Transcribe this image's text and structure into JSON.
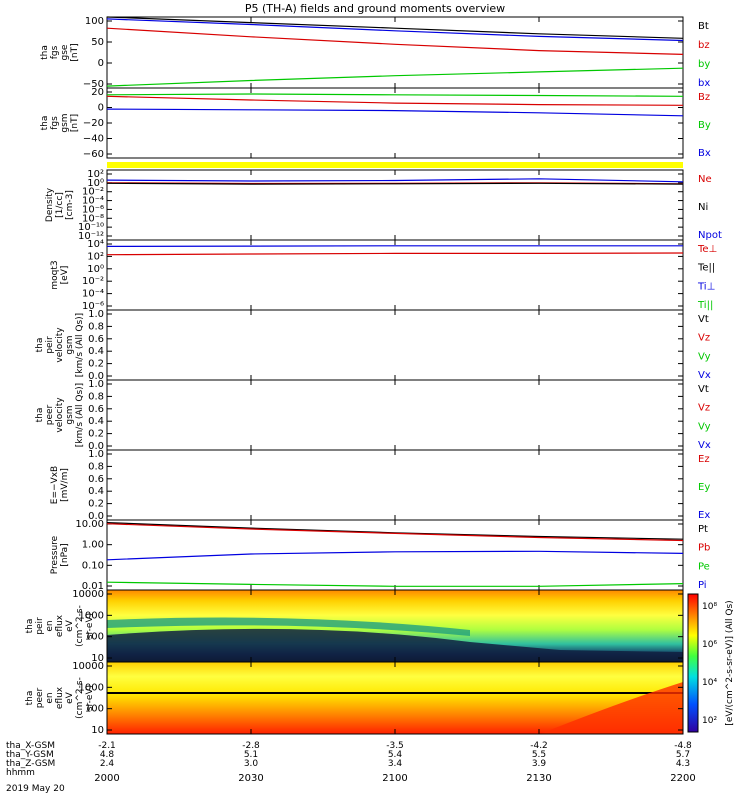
{
  "title": "P5 (TH-A) fields and ground moments overview",
  "colors": {
    "black": "#000000",
    "red": "#d80000",
    "green": "#00c800",
    "blue": "#0000e0",
    "yellow": "#ffff00"
  },
  "x_axis": {
    "ticks": [
      "2000",
      "2030",
      "2100",
      "2130",
      "2200"
    ],
    "date_label": "2019 May 20",
    "rows": [
      {
        "label": "tha_X-GSM",
        "values": [
          "-2.1",
          "-2.8",
          "-3.5",
          "-4.2",
          "-4.8"
        ]
      },
      {
        "label": "tha_Y-GSM",
        "values": [
          "4.8",
          "5.1",
          "5.4",
          "5.5",
          "5.7"
        ]
      },
      {
        "label": "tha_Z-GSM",
        "values": [
          "2.4",
          "3.0",
          "3.4",
          "3.9",
          "4.3"
        ]
      },
      {
        "label": "hhmm",
        "values": [
          "",
          "",
          "",
          "",
          ""
        ]
      }
    ]
  },
  "panels": [
    {
      "id": "fgs-gse",
      "ylabel": [
        "tha",
        "fgs",
        "gse",
        "[nT]"
      ],
      "ticks": [
        "100",
        "50",
        "0",
        "−50"
      ],
      "legend": [
        {
          "text": "Bt",
          "color": "black"
        },
        {
          "text": "bz",
          "color": "red"
        },
        {
          "text": "by",
          "color": "green"
        },
        {
          "text": "bx",
          "color": "blue"
        }
      ]
    },
    {
      "id": "fgs-gsm",
      "ylabel": [
        "tha",
        "fgs",
        "gsm",
        "[nT]"
      ],
      "ticks": [
        "20",
        "0",
        "−20",
        "−40",
        "−60"
      ],
      "legend": [
        {
          "text": "Bz",
          "color": "red"
        },
        {
          "text": "By",
          "color": "green"
        },
        {
          "text": "Bx",
          "color": "blue"
        }
      ]
    },
    {
      "id": "flag",
      "ylabel": [],
      "ticks": [],
      "legend": []
    },
    {
      "id": "density",
      "ylabel": [
        "Density",
        "[1/cc]",
        "[cm-3]"
      ],
      "ticks": [
        "10²",
        "10⁰",
        "10⁻²",
        "10⁻⁴",
        "10⁻⁶",
        "10⁻⁸",
        "10⁻¹⁰",
        "10⁻¹²"
      ],
      "legend": [
        {
          "text": "Ne",
          "color": "red"
        },
        {
          "text": "Ni",
          "color": "black"
        },
        {
          "text": "Npot",
          "color": "blue"
        }
      ]
    },
    {
      "id": "temp",
      "ylabel": [
        "moqt3",
        "[eV]"
      ],
      "ticks": [
        "10⁴",
        "10²",
        "10⁰",
        "10⁻²",
        "10⁻⁴",
        "10⁻⁶"
      ],
      "legend": [
        {
          "text": "Te⊥",
          "color": "red"
        },
        {
          "text": "Te||",
          "color": "black"
        },
        {
          "text": "Ti⊥",
          "color": "blue"
        },
        {
          "text": "Ti||",
          "color": "green"
        }
      ]
    },
    {
      "id": "peir-vel",
      "ylabel": [
        "tha",
        "peir",
        "velocity",
        "gsm",
        "[km/s (All Qs)]"
      ],
      "ticks": [
        "1.0",
        "0.8",
        "0.6",
        "0.4",
        "0.2",
        "0.0"
      ],
      "legend": [
        {
          "text": "Vt",
          "color": "black"
        },
        {
          "text": "Vz",
          "color": "red"
        },
        {
          "text": "Vy",
          "color": "green"
        },
        {
          "text": "Vx",
          "color": "blue"
        }
      ]
    },
    {
      "id": "peer-vel",
      "ylabel": [
        "tha",
        "peer",
        "velocity",
        "gsm",
        "[km/s (All Qs)]"
      ],
      "ticks": [
        "1.0",
        "0.8",
        "0.6",
        "0.4",
        "0.2",
        "0.0"
      ],
      "legend": [
        {
          "text": "Vt",
          "color": "black"
        },
        {
          "text": "Vz",
          "color": "red"
        },
        {
          "text": "Vy",
          "color": "green"
        },
        {
          "text": "Vx",
          "color": "blue"
        }
      ]
    },
    {
      "id": "efield",
      "ylabel": [
        "E=−VxB",
        "[mV/m]"
      ],
      "ticks": [
        "1.0",
        "0.8",
        "0.6",
        "0.4",
        "0.2",
        "0.0"
      ],
      "legend": [
        {
          "text": "Ez",
          "color": "red"
        },
        {
          "text": "Ey",
          "color": "green"
        },
        {
          "text": "Ex",
          "color": "blue"
        }
      ]
    },
    {
      "id": "pressure",
      "ylabel": [
        "Pressure",
        "[nPa]"
      ],
      "ticks": [
        "10.00",
        "1.00",
        "0.10",
        "0.01"
      ],
      "legend": [
        {
          "text": "Pt",
          "color": "black"
        },
        {
          "text": "Pb",
          "color": "red"
        },
        {
          "text": "Pe",
          "color": "green"
        },
        {
          "text": "Pi",
          "color": "blue"
        }
      ]
    },
    {
      "id": "peir-spec",
      "ylabel": [
        "tha",
        "peir",
        "en",
        "eflux",
        "eV",
        "(cm^2-s-",
        "sr-eV)"
      ],
      "ticks": [
        "10000",
        "1000",
        "100",
        "10"
      ],
      "legend": []
    },
    {
      "id": "peer-spec",
      "ylabel": [
        "tha",
        "peer",
        "en",
        "eflux",
        "eV",
        "(cm^2-s-",
        "sr-eV)"
      ],
      "ticks": [
        "10000",
        "1000",
        "100",
        "10"
      ],
      "legend": []
    }
  ],
  "colorbar": {
    "label": "[eV/(cm^2-s-sr-eV)] (All Qs)",
    "ticks": [
      "10⁸",
      "10⁶",
      "10⁴",
      "10²"
    ]
  },
  "chart_data": {
    "type": "line",
    "title": "P5 (TH-A) fields and ground moments overview",
    "x_ticks": [
      "2000",
      "2030",
      "2100",
      "2130",
      "2200"
    ],
    "x_range": [
      "2000",
      "2200"
    ],
    "series": [
      {
        "panel": "fgs-gse",
        "name": "Bt",
        "x": [
          0,
          30,
          60,
          90,
          120
        ],
        "values": [
          115,
          100,
          85,
          70,
          58
        ],
        "ylim": [
          -75,
          115
        ]
      },
      {
        "panel": "fgs-gse",
        "name": "bz",
        "x": [
          0,
          30,
          60,
          90,
          120
        ],
        "values": [
          85,
          62,
          42,
          25,
          15
        ],
        "ylim": [
          -75,
          115
        ]
      },
      {
        "panel": "fgs-gse",
        "name": "by",
        "x": [
          0,
          30,
          60,
          90,
          120
        ],
        "values": [
          -70,
          -55,
          -42,
          -32,
          -22
        ],
        "ylim": [
          -75,
          115
        ]
      },
      {
        "panel": "fgs-gse",
        "name": "bx",
        "x": [
          0,
          30,
          60,
          90,
          120
        ],
        "values": [
          110,
          95,
          78,
          63,
          52
        ],
        "ylim": [
          -75,
          115
        ]
      },
      {
        "panel": "fgs-gsm",
        "name": "Bz",
        "x": [
          0,
          30,
          60,
          90,
          120
        ],
        "values": [
          14,
          9,
          5,
          3,
          2
        ],
        "ylim": [
          -68,
          25
        ]
      },
      {
        "panel": "fgs-gsm",
        "name": "By",
        "x": [
          0,
          30,
          60,
          90,
          120
        ],
        "values": [
          16,
          17,
          16,
          15,
          14
        ],
        "ylim": [
          -68,
          25
        ]
      },
      {
        "panel": "fgs-gsm",
        "name": "Bx",
        "x": [
          0,
          30,
          60,
          90,
          120
        ],
        "values": [
          -3,
          -4,
          -5,
          -8,
          -12
        ],
        "ylim": [
          -68,
          25
        ]
      },
      {
        "panel": "density",
        "name": "Ne",
        "x": [
          0,
          30,
          60,
          90,
          120
        ],
        "values": [
          1.2,
          0.8,
          0.9,
          1.2,
          0.7
        ],
        "scale": "log",
        "ylim": [
          1e-13,
          1000
        ]
      },
      {
        "panel": "density",
        "name": "Ni",
        "x": [
          0,
          30,
          60,
          90,
          120
        ],
        "values": [
          0.9,
          0.6,
          0.7,
          0.9,
          0.6
        ],
        "scale": "log",
        "ylim": [
          1e-13,
          1000
        ]
      },
      {
        "panel": "density",
        "name": "Npot",
        "x": [
          0,
          30,
          60,
          90,
          120
        ],
        "values": [
          5,
          3,
          4,
          10,
          2
        ],
        "scale": "log",
        "ylim": [
          1e-13,
          1000
        ]
      },
      {
        "panel": "temp",
        "name": "Te⊥",
        "x": [
          0,
          30,
          60,
          90,
          120
        ],
        "values": [
          300,
          400,
          500,
          500,
          600
        ],
        "scale": "log",
        "ylim": [
          1e-07,
          100000
        ]
      },
      {
        "panel": "temp",
        "name": "Ti⊥",
        "x": [
          0,
          30,
          60,
          90,
          120
        ],
        "values": [
          8000,
          9000,
          10000,
          10000,
          10000
        ],
        "scale": "log",
        "ylim": [
          1e-07,
          100000
        ]
      },
      {
        "panel": "pressure",
        "name": "Pt",
        "x": [
          0,
          30,
          60,
          90,
          120
        ],
        "values": [
          9,
          5,
          3,
          2,
          1.5
        ],
        "scale": "log",
        "ylim": [
          0.006,
          12
        ]
      },
      {
        "panel": "pressure",
        "name": "Pb",
        "x": [
          0,
          30,
          60,
          90,
          120
        ],
        "values": [
          8,
          4.5,
          2.8,
          1.8,
          1.3
        ],
        "scale": "log",
        "ylim": [
          0.006,
          12
        ]
      },
      {
        "panel": "pressure",
        "name": "Pe",
        "x": [
          0,
          30,
          60,
          90,
          120
        ],
        "values": [
          0.014,
          0.011,
          0.009,
          0.009,
          0.012
        ],
        "scale": "log",
        "ylim": [
          0.006,
          12
        ]
      },
      {
        "panel": "pressure",
        "name": "Pi",
        "x": [
          0,
          30,
          60,
          90,
          120
        ],
        "values": [
          0.16,
          0.3,
          0.38,
          0.4,
          0.32
        ],
        "scale": "log",
        "ylim": [
          0.006,
          12
        ]
      }
    ]
  }
}
